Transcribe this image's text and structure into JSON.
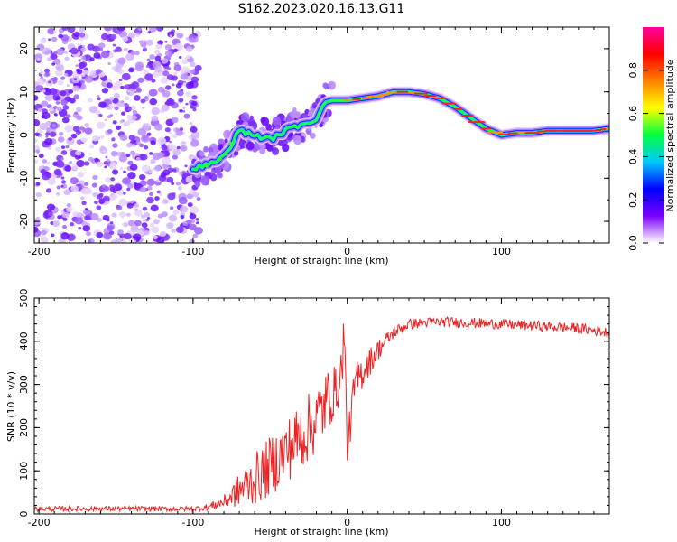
{
  "title": "S162.2023.020.16.13.G11",
  "chart_data": [
    {
      "type": "heatmap",
      "title": "S162.2023.020.16.13.G11",
      "xlabel": "Height of straight line (km)",
      "ylabel": "Frequency (Hz)",
      "xlim": [
        -203,
        170
      ],
      "ylim": [
        -25,
        25
      ],
      "xticks": [
        "-200",
        "-100",
        "0",
        "100"
      ],
      "yticks": [
        "20",
        "10",
        "0",
        "-10",
        "-20"
      ],
      "colorbar": {
        "label": "Normalized spectral amplitude",
        "range": [
          0,
          1
        ],
        "ticks": [
          "0.0",
          "0.2",
          "0.4",
          "0.6",
          "0.8"
        ],
        "colors": [
          "#ffffff",
          "#7b00ff",
          "#0000ff",
          "#00c8ff",
          "#00ff40",
          "#ffff00",
          "#ff8000",
          "#ff0000",
          "#ff00a0"
        ]
      },
      "ridge": {
        "height_km": [
          -100,
          -90,
          -80,
          -70,
          -60,
          -50,
          -40,
          -30,
          -20,
          -15,
          -10,
          0,
          10,
          20,
          30,
          40,
          50,
          60,
          70,
          80,
          90,
          100,
          110,
          120,
          130,
          140,
          150,
          160,
          170
        ],
        "frequency_hz": [
          -7.5,
          -7,
          -5,
          1,
          0,
          -1,
          1,
          2.5,
          3.5,
          7.5,
          8,
          8,
          8.5,
          9,
          10,
          10,
          9.5,
          8.5,
          6.5,
          4,
          1.5,
          0,
          0.5,
          0.5,
          1,
          1,
          1,
          1,
          1.5
        ]
      },
      "noise_region_km": [
        -203,
        -100
      ]
    },
    {
      "type": "line",
      "xlabel": "Height of straight line (km)",
      "ylabel": "SNR (10 * v/v)",
      "xlim": [
        -203,
        170
      ],
      "ylim": [
        0,
        500
      ],
      "xticks": [
        "-200",
        "-100",
        "0",
        "100"
      ],
      "yticks": [
        "0",
        "100",
        "200",
        "300",
        "400",
        "500"
      ],
      "color": "#ee2222",
      "envelope": {
        "x": [
          -203,
          -100,
          -90,
          -80,
          -70,
          -60,
          -50,
          -40,
          -30,
          -20,
          -15,
          -10,
          -5,
          -2,
          0,
          5,
          10,
          20,
          30,
          40,
          60,
          100,
          150,
          170
        ],
        "mean": [
          12,
          12,
          16,
          28,
          55,
          80,
          110,
          145,
          180,
          220,
          250,
          280,
          290,
          420,
          150,
          300,
          330,
          380,
          420,
          440,
          445,
          440,
          430,
          420
        ],
        "jitter": [
          6,
          6,
          8,
          15,
          40,
          60,
          70,
          75,
          80,
          80,
          80,
          70,
          40,
          80,
          40,
          50,
          40,
          25,
          15,
          12,
          12,
          12,
          12,
          12
        ]
      }
    }
  ]
}
